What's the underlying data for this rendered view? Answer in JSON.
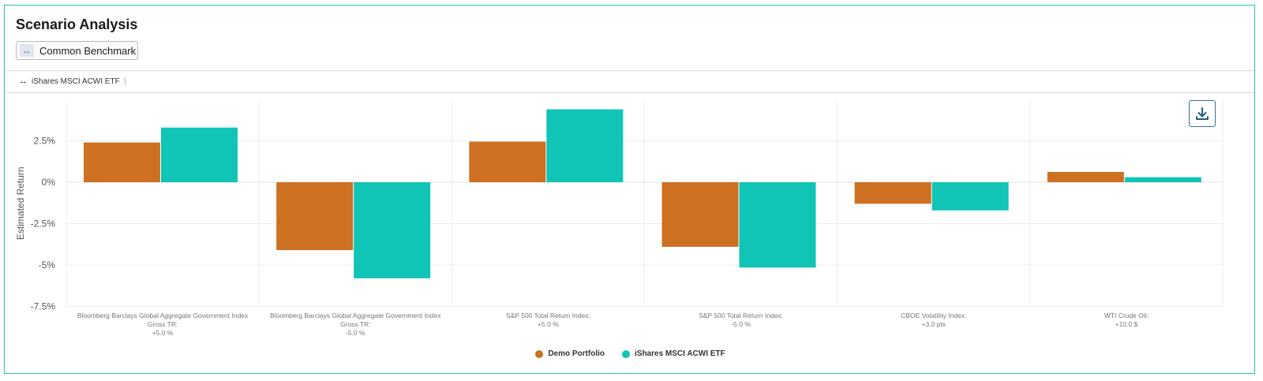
{
  "header": {
    "title": "Scenario Analysis",
    "benchmark_button_label": "Common Benchmark",
    "benchmark_tag": "iShares MSCI ACWI ETF"
  },
  "icons": {
    "benchmark": "left-right-arrow-icon",
    "download": "download-icon"
  },
  "colors": {
    "frame": "#26bfb5",
    "portfolio": "#cd7022",
    "benchmark": "#10c4b6"
  },
  "chart_data": {
    "type": "bar",
    "ylabel": "Estimated Return",
    "ylim": [
      -7.5,
      5.0
    ],
    "yticks": [
      2.5,
      0,
      -2.5,
      -5,
      -7.5
    ],
    "ytick_labels": [
      "2.5%",
      "0%",
      "-2.5%",
      "-5%",
      "-7.5%"
    ],
    "grid": true,
    "legend_position": "bottom-center",
    "categories": [
      [
        "Bloomberg Barclays Global Aggregate Government Index",
        "Gross TR:",
        "+5.0 %"
      ],
      [
        "Bloomberg Barclays Global Aggregate Government Index",
        "Gross TR:",
        "-5.0 %"
      ],
      [
        "S&P 500 Total Return Index:",
        "+5.0 %"
      ],
      [
        "S&P 500 Total Return Index:",
        "-5.0 %"
      ],
      [
        "CBOE Volatility Index:",
        "+3.0 pts"
      ],
      [
        "WTI Crude Oil:",
        "+10.0 $"
      ]
    ],
    "series": [
      {
        "name": "Demo Portfolio",
        "color": "#cd7022",
        "values": [
          2.4,
          -4.1,
          2.45,
          -3.9,
          -1.3,
          0.62
        ]
      },
      {
        "name": "iShares MSCI ACWI ETF",
        "color": "#10c4b6",
        "values": [
          3.3,
          -5.8,
          4.4,
          -5.15,
          -1.7,
          0.3
        ]
      }
    ]
  }
}
